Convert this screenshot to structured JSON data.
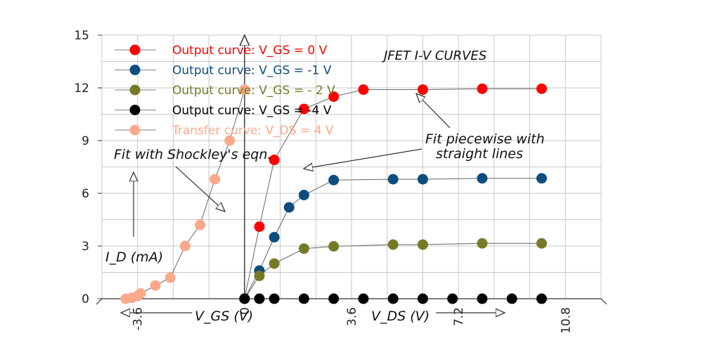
{
  "chart_data": {
    "type": "scatter",
    "title": "JFET I-V CURVES",
    "ylabel": "I_D (mA)",
    "xlabel_right": "V_DS (V)",
    "xlabel_left": "V_GS (V)",
    "xlim": [
      -4.8,
      12.0
    ],
    "ylim": [
      0,
      15
    ],
    "grid": true,
    "legend_position": "top-left",
    "y_ticks": [
      0,
      3,
      6,
      9,
      12,
      15
    ],
    "x_ticks": [
      -3.6,
      0,
      3.6,
      7.2,
      10.8
    ],
    "x_tick_labels": [
      "-3.6",
      "0",
      "3.6",
      "7.2",
      "10.8"
    ],
    "series": [
      {
        "name": "Output curve: V_GS = 0 V",
        "color": "#ff0000",
        "fit": "piecewise",
        "x": [
          0,
          0.5,
          1,
          2,
          3,
          4,
          6,
          8,
          10
        ],
        "y": [
          0,
          4.1,
          7.9,
          10.8,
          11.5,
          11.9,
          11.9,
          11.95,
          11.95
        ]
      },
      {
        "name": "Output curve: V_GS = -1 V",
        "color": "#0d4d7e",
        "fit": "piecewise",
        "x": [
          0,
          0.5,
          1,
          1.5,
          2,
          3,
          5,
          6,
          8,
          10
        ],
        "y": [
          0,
          1.6,
          3.5,
          5.2,
          5.9,
          6.75,
          6.8,
          6.8,
          6.85,
          6.85
        ]
      },
      {
        "name": "Output curve: V_GS = - 2 V",
        "color": "#767a27",
        "fit": "piecewise",
        "x": [
          0,
          0.5,
          1,
          2,
          3,
          5,
          6,
          8,
          10
        ],
        "y": [
          0,
          1.3,
          2.0,
          2.85,
          2.98,
          3.08,
          3.08,
          3.15,
          3.15
        ]
      },
      {
        "name": "Output curve: V_GS = -4 V",
        "color": "#000000",
        "fit": "none",
        "x": [
          0,
          0.5,
          1,
          2,
          3,
          4,
          5,
          6,
          7,
          8,
          9,
          10
        ],
        "y": [
          0,
          0,
          0,
          0,
          0,
          0,
          0,
          0,
          0,
          0,
          0,
          0
        ]
      },
      {
        "name": "Transfer curve: V_DS = 4 V",
        "color": "#fba98a",
        "fit": "shockley",
        "x": [
          -4.0,
          -3.8,
          -3.6,
          -3.5,
          -3.0,
          -2.5,
          -2.0,
          -1.5,
          -1.0,
          -0.5,
          0
        ],
        "y": [
          0,
          0.05,
          0.15,
          0.3,
          0.75,
          1.2,
          3.0,
          4.2,
          6.8,
          9.0,
          11.9
        ]
      }
    ],
    "annotations": [
      {
        "text": "Fit with Shockley's eqn."
      },
      {
        "text": "Fit piecewise with"
      },
      {
        "text": "straight lines"
      }
    ]
  }
}
